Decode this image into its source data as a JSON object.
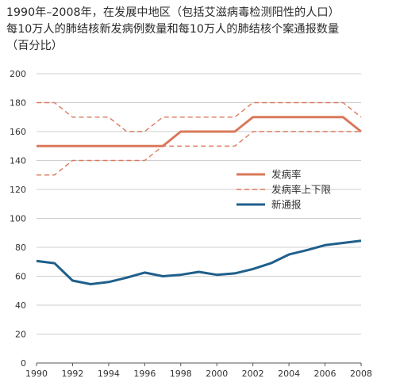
{
  "title_lines": [
    "1990年–2008年，在发展中地区（包括艾滋病毒检测阳性的人口）",
    "每10万人的肺结核新发病例数量和每10万人的肺结核个案通报数量",
    "（百分比）"
  ],
  "colors": {
    "incidence": "#d9795a",
    "bounds": "#d9795a",
    "notified": "#1f5f8b",
    "grid": "#bfbfbf",
    "axis": "#555555"
  },
  "chart_data": {
    "type": "line",
    "title": "1990年–2008年，在发展中地区（包括艾滋病毒检测阳性的人口）每10万人的肺结核新发病例数量和每10万人的肺结核个案通报数量（百分比）",
    "xlabel": "",
    "ylabel": "",
    "xlim": [
      1990,
      2008
    ],
    "ylim": [
      0,
      200
    ],
    "x_ticks": [
      "1990",
      "1992",
      "1994",
      "1996",
      "1998",
      "2000",
      "2002",
      "2004",
      "2006",
      "2008"
    ],
    "x_tick_values": [
      1990,
      1992,
      1994,
      1996,
      1998,
      2000,
      2002,
      2004,
      2006,
      2008
    ],
    "y_ticks": [
      "0",
      "20",
      "40",
      "60",
      "80",
      "100",
      "120",
      "140",
      "160",
      "180",
      "200"
    ],
    "y_tick_values": [
      0,
      20,
      40,
      60,
      80,
      100,
      120,
      140,
      160,
      180,
      200
    ],
    "grid": "horizontal",
    "legend_position": "center-right",
    "series": [
      {
        "name": "发病率",
        "style": "solid",
        "points": [
          [
            1990,
            150
          ],
          [
            1991,
            150
          ],
          [
            1992,
            150
          ],
          [
            1993,
            150
          ],
          [
            1994,
            150
          ],
          [
            1995,
            150
          ],
          [
            1996,
            150
          ],
          [
            1997,
            150
          ],
          [
            1998,
            160
          ],
          [
            1999,
            160
          ],
          [
            2000,
            160
          ],
          [
            2001,
            160
          ],
          [
            2002,
            170
          ],
          [
            2003,
            170
          ],
          [
            2004,
            170
          ],
          [
            2005,
            170
          ],
          [
            2006,
            170
          ],
          [
            2007,
            170
          ],
          [
            2008,
            160
          ]
        ]
      },
      {
        "name": "发病率上下限",
        "style": "dashed",
        "points": [
          [
            1990,
            180
          ],
          [
            1991,
            180
          ],
          [
            1992,
            170
          ],
          [
            1993,
            170
          ],
          [
            1994,
            170
          ],
          [
            1995,
            160
          ],
          [
            1996,
            160
          ],
          [
            1997,
            170
          ],
          [
            1998,
            170
          ],
          [
            1999,
            170
          ],
          [
            2000,
            170
          ],
          [
            2001,
            170
          ],
          [
            2002,
            180
          ],
          [
            2003,
            180
          ],
          [
            2004,
            180
          ],
          [
            2005,
            180
          ],
          [
            2006,
            180
          ],
          [
            2007,
            180
          ],
          [
            2008,
            170
          ]
        ]
      },
      {
        "name": "",
        "style": "dashed",
        "points": [
          [
            1990,
            130
          ],
          [
            1991,
            130
          ],
          [
            1992,
            140
          ],
          [
            1993,
            140
          ],
          [
            1994,
            140
          ],
          [
            1995,
            140
          ],
          [
            1996,
            140
          ],
          [
            1997,
            150
          ],
          [
            1998,
            150
          ],
          [
            1999,
            150
          ],
          [
            2000,
            150
          ],
          [
            2001,
            150
          ],
          [
            2002,
            160
          ],
          [
            2003,
            160
          ],
          [
            2004,
            160
          ],
          [
            2005,
            160
          ],
          [
            2006,
            160
          ],
          [
            2007,
            160
          ],
          [
            2008,
            160
          ]
        ]
      },
      {
        "name": "新通报",
        "style": "solid",
        "points": [
          [
            1990,
            70.5
          ],
          [
            1991,
            69
          ],
          [
            1992,
            57
          ],
          [
            1993,
            54.5
          ],
          [
            1994,
            56
          ],
          [
            1995,
            59
          ],
          [
            1996,
            62.5
          ],
          [
            1997,
            60
          ],
          [
            1998,
            61
          ],
          [
            1999,
            63
          ],
          [
            2000,
            61
          ],
          [
            2001,
            62
          ],
          [
            2002,
            65
          ],
          [
            2003,
            69
          ],
          [
            2004,
            75
          ],
          [
            2005,
            78
          ],
          [
            2006,
            81.5
          ],
          [
            2007,
            83
          ],
          [
            2008,
            84.5
          ]
        ]
      }
    ],
    "legend": [
      {
        "label": "发病率",
        "style": "solid",
        "color": "#d9795a"
      },
      {
        "label": "发病率上下限",
        "style": "dashed",
        "color": "#d9795a"
      },
      {
        "label": "新通报",
        "style": "solid",
        "color": "#1f5f8b"
      }
    ]
  }
}
